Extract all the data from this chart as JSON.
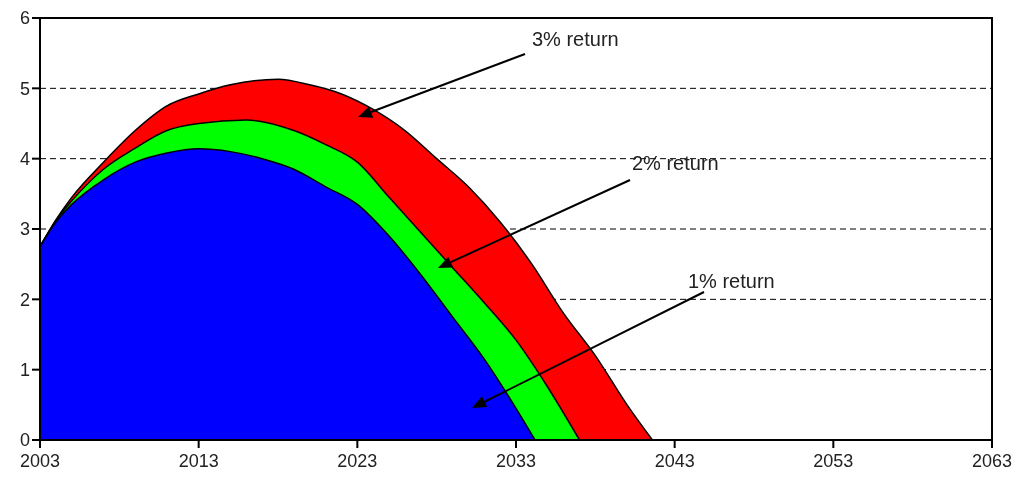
{
  "chart_data": {
    "type": "area",
    "xlim": [
      2003,
      2063
    ],
    "xticks": [
      2003,
      2013,
      2023,
      2033,
      2043,
      2053,
      2063
    ],
    "ylim": [
      0,
      6
    ],
    "yticks": [
      0,
      1,
      2,
      3,
      4,
      5,
      6
    ],
    "grid": "y",
    "line_style": "solid",
    "series": [
      {
        "name": "3% return",
        "color": "#ff0000",
        "x": [
          2003,
          2004,
          2005,
          2007,
          2009,
          2011,
          2013,
          2015,
          2018,
          2020,
          2022,
          2024,
          2026,
          2028,
          2030,
          2032,
          2034,
          2036,
          2038,
          2040,
          2041.6
        ],
        "values": [
          2.75,
          3.13,
          3.45,
          3.95,
          4.4,
          4.75,
          4.92,
          5.05,
          5.13,
          5.05,
          4.92,
          4.7,
          4.4,
          4.0,
          3.6,
          3.1,
          2.5,
          1.8,
          1.2,
          0.5,
          0
        ]
      },
      {
        "name": "2% return",
        "color": "#00ff00",
        "x": [
          2003,
          2004,
          2005,
          2007,
          2009,
          2011,
          2013,
          2016,
          2019,
          2021,
          2023,
          2025,
          2027,
          2029,
          2031,
          2033,
          2035,
          2037
        ],
        "values": [
          2.75,
          3.12,
          3.4,
          3.85,
          4.15,
          4.4,
          4.5,
          4.55,
          4.4,
          4.2,
          3.95,
          3.45,
          2.95,
          2.45,
          1.95,
          1.42,
          0.75,
          0
        ]
      },
      {
        "name": "1% return",
        "color": "#0000ff",
        "x": [
          2003,
          2004,
          2005,
          2007,
          2009,
          2011,
          2013,
          2015,
          2017,
          2019,
          2021,
          2023,
          2025,
          2027,
          2029,
          2031,
          2033,
          2034.2
        ],
        "values": [
          2.75,
          3.1,
          3.35,
          3.7,
          3.95,
          4.08,
          4.14,
          4.1,
          4.0,
          3.85,
          3.6,
          3.35,
          2.9,
          2.35,
          1.75,
          1.15,
          0.45,
          0
        ]
      }
    ]
  }
}
